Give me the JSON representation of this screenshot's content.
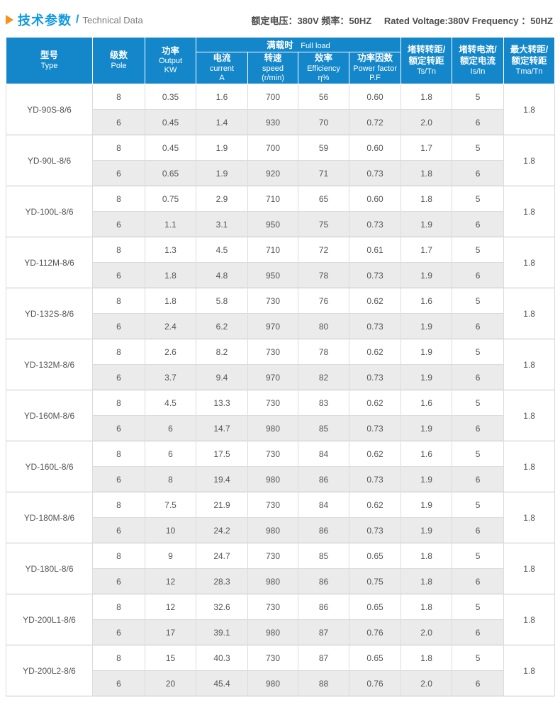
{
  "colors": {
    "header_blue": "#1487cb",
    "title_blue": "#0f99e0",
    "arrow_orange": "#f6921e",
    "alt_row_gray": "#ebebeb",
    "border_gray": "#c6c6c6",
    "text_gray": "#555555"
  },
  "page": {
    "title_zh": "技术参数",
    "title_sep": "/",
    "title_en": "Technical Data",
    "rating_zh": "额定电压：380V  频率：50HZ",
    "rating_en": "Rated Voltage:380V   Frequency ：50HZ"
  },
  "table": {
    "headers": {
      "type_zh": "型号",
      "type_en": "Type",
      "pole_zh": "级数",
      "pole_en": "Pole",
      "output_zh": "功率",
      "output_en": "Output",
      "output_unit": "KW",
      "full_load_zh": "满载时",
      "full_load_en": "Full load",
      "current_zh": "电流",
      "current_en": "current",
      "current_unit": "A",
      "speed_zh": "转速",
      "speed_en": "speed",
      "speed_unit": "(r/min)",
      "efficiency_zh": "效率",
      "efficiency_en": "Efficiency",
      "efficiency_unit": "η%",
      "pf_zh": "功率因数",
      "pf_en": "Power factor",
      "pf_unit": "P.F",
      "ts_zh1": "堵转转距/",
      "ts_zh2": "额定转距",
      "ts_unit": "Ts/Tn",
      "is_zh1": "堵转电流/",
      "is_zh2": "额定电流",
      "is_unit": "Is/In",
      "tmax_zh1": "最大转距/",
      "tmax_zh2": "额定转距",
      "tmax_unit": "Tma/Tn"
    },
    "models": [
      {
        "type": "YD-90S-8/6",
        "tmax": "1.8",
        "rows": [
          {
            "pole": "8",
            "output": "0.35",
            "current": "1.6",
            "speed": "700",
            "efficiency": "56",
            "pf": "0.60",
            "ts": "1.8",
            "isin": "5"
          },
          {
            "pole": "6",
            "output": "0.45",
            "current": "1.4",
            "speed": "930",
            "efficiency": "70",
            "pf": "0.72",
            "ts": "2.0",
            "isin": "6"
          }
        ]
      },
      {
        "type": "YD-90L-8/6",
        "tmax": "1.8",
        "rows": [
          {
            "pole": "8",
            "output": "0.45",
            "current": "1.9",
            "speed": "700",
            "efficiency": "59",
            "pf": "0.60",
            "ts": "1.7",
            "isin": "5"
          },
          {
            "pole": "6",
            "output": "0.65",
            "current": "1.9",
            "speed": "920",
            "efficiency": "71",
            "pf": "0.73",
            "ts": "1.8",
            "isin": "6"
          }
        ]
      },
      {
        "type": "YD-100L-8/6",
        "tmax": "1.8",
        "rows": [
          {
            "pole": "8",
            "output": "0.75",
            "current": "2.9",
            "speed": "710",
            "efficiency": "65",
            "pf": "0.60",
            "ts": "1.8",
            "isin": "5"
          },
          {
            "pole": "6",
            "output": "1.1",
            "current": "3.1",
            "speed": "950",
            "efficiency": "75",
            "pf": "0.73",
            "ts": "1.9",
            "isin": "6"
          }
        ]
      },
      {
        "type": "YD-112M-8/6",
        "tmax": "1.8",
        "rows": [
          {
            "pole": "8",
            "output": "1.3",
            "current": "4.5",
            "speed": "710",
            "efficiency": "72",
            "pf": "0.61",
            "ts": "1.7",
            "isin": "5"
          },
          {
            "pole": "6",
            "output": "1.8",
            "current": "4.8",
            "speed": "950",
            "efficiency": "78",
            "pf": "0.73",
            "ts": "1.9",
            "isin": "6"
          }
        ]
      },
      {
        "type": "YD-132S-8/6",
        "tmax": "1.8",
        "rows": [
          {
            "pole": "8",
            "output": "1.8",
            "current": "5.8",
            "speed": "730",
            "efficiency": "76",
            "pf": "0.62",
            "ts": "1.6",
            "isin": "5"
          },
          {
            "pole": "6",
            "output": "2.4",
            "current": "6.2",
            "speed": "970",
            "efficiency": "80",
            "pf": "0.73",
            "ts": "1.9",
            "isin": "6"
          }
        ]
      },
      {
        "type": "YD-132M-8/6",
        "tmax": "1.8",
        "rows": [
          {
            "pole": "8",
            "output": "2.6",
            "current": "8.2",
            "speed": "730",
            "efficiency": "78",
            "pf": "0.62",
            "ts": "1.9",
            "isin": "5"
          },
          {
            "pole": "6",
            "output": "3.7",
            "current": "9.4",
            "speed": "970",
            "efficiency": "82",
            "pf": "0.73",
            "ts": "1.9",
            "isin": "6"
          }
        ]
      },
      {
        "type": "YD-160M-8/6",
        "tmax": "1.8",
        "rows": [
          {
            "pole": "8",
            "output": "4.5",
            "current": "13.3",
            "speed": "730",
            "efficiency": "83",
            "pf": "0.62",
            "ts": "1.6",
            "isin": "5"
          },
          {
            "pole": "6",
            "output": "6",
            "current": "14.7",
            "speed": "980",
            "efficiency": "85",
            "pf": "0.73",
            "ts": "1.9",
            "isin": "6"
          }
        ]
      },
      {
        "type": "YD-160L-8/6",
        "tmax": "1.8",
        "rows": [
          {
            "pole": "8",
            "output": "6",
            "current": "17.5",
            "speed": "730",
            "efficiency": "84",
            "pf": "0.62",
            "ts": "1.6",
            "isin": "5"
          },
          {
            "pole": "6",
            "output": "8",
            "current": "19.4",
            "speed": "980",
            "efficiency": "86",
            "pf": "0.73",
            "ts": "1.9",
            "isin": "6"
          }
        ]
      },
      {
        "type": "YD-180M-8/6",
        "tmax": "1.8",
        "rows": [
          {
            "pole": "8",
            "output": "7.5",
            "current": "21.9",
            "speed": "730",
            "efficiency": "84",
            "pf": "0.62",
            "ts": "1.9",
            "isin": "5"
          },
          {
            "pole": "6",
            "output": "10",
            "current": "24.2",
            "speed": "980",
            "efficiency": "86",
            "pf": "0.73",
            "ts": "1.9",
            "isin": "6"
          }
        ]
      },
      {
        "type": "YD-180L-8/6",
        "tmax": "1.8",
        "rows": [
          {
            "pole": "8",
            "output": "9",
            "current": "24.7",
            "speed": "730",
            "efficiency": "85",
            "pf": "0.65",
            "ts": "1.8",
            "isin": "5"
          },
          {
            "pole": "6",
            "output": "12",
            "current": "28.3",
            "speed": "980",
            "efficiency": "86",
            "pf": "0.75",
            "ts": "1.8",
            "isin": "6"
          }
        ]
      },
      {
        "type": "YD-200L1-8/6",
        "tmax": "1.8",
        "rows": [
          {
            "pole": "8",
            "output": "12",
            "current": "32.6",
            "speed": "730",
            "efficiency": "86",
            "pf": "0.65",
            "ts": "1.8",
            "isin": "5"
          },
          {
            "pole": "6",
            "output": "17",
            "current": "39.1",
            "speed": "980",
            "efficiency": "87",
            "pf": "0.76",
            "ts": "2.0",
            "isin": "6"
          }
        ]
      },
      {
        "type": "YD-200L2-8/6",
        "tmax": "1.8",
        "rows": [
          {
            "pole": "8",
            "output": "15",
            "current": "40.3",
            "speed": "730",
            "efficiency": "87",
            "pf": "0.65",
            "ts": "1.8",
            "isin": "5"
          },
          {
            "pole": "6",
            "output": "20",
            "current": "45.4",
            "speed": "980",
            "efficiency": "88",
            "pf": "0.76",
            "ts": "2.0",
            "isin": "6"
          }
        ]
      }
    ]
  }
}
